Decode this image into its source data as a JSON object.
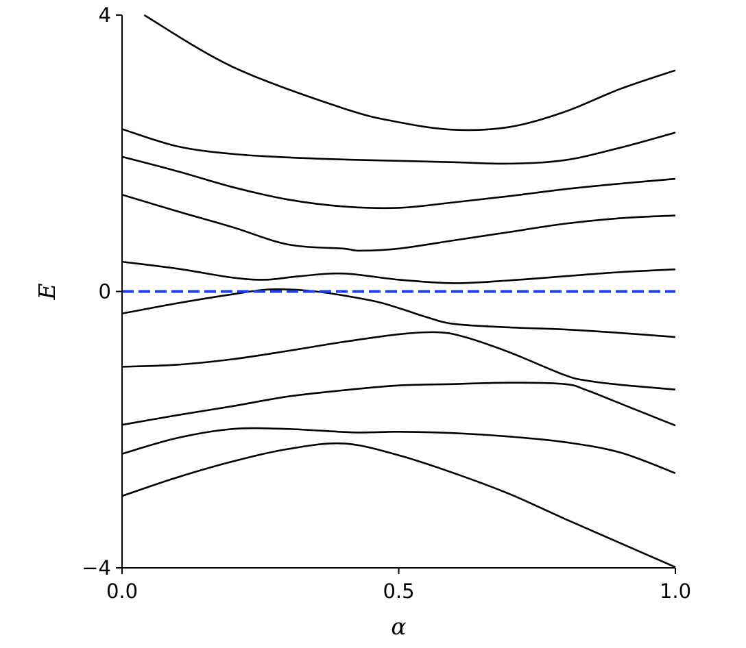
{
  "chart_data": {
    "type": "line",
    "title": "",
    "xlabel": "α",
    "ylabel": "E",
    "xlim": [
      0.0,
      1.0
    ],
    "ylim": [
      -4,
      4
    ],
    "xticks": [
      {
        "value": 0.0,
        "label": "0.0"
      },
      {
        "value": 0.5,
        "label": "0.5"
      },
      {
        "value": 1.0,
        "label": "1.0"
      }
    ],
    "yticks": [
      {
        "value": 4,
        "label": "4"
      },
      {
        "value": 0,
        "label": "0"
      },
      {
        "value": -4,
        "label": "−4"
      }
    ],
    "grid": false,
    "spines": [
      "left",
      "bottom"
    ],
    "line_color": "#000000",
    "reference_line": {
      "y": 0,
      "color": "#1f3fe6",
      "style": "dashed"
    },
    "series": [
      {
        "x": [
          0.04,
          0.2,
          0.4,
          0.5,
          0.6,
          0.7,
          0.8,
          0.9,
          1.0
        ],
        "y": [
          4.0,
          3.25,
          2.65,
          2.45,
          2.34,
          2.38,
          2.6,
          2.93,
          3.2
        ]
      },
      {
        "x": [
          0.0,
          0.1,
          0.2,
          0.3,
          0.4,
          0.5,
          0.6,
          0.7,
          0.8,
          0.9,
          1.0
        ],
        "y": [
          2.35,
          2.1,
          1.99,
          1.94,
          1.91,
          1.89,
          1.87,
          1.85,
          1.9,
          2.08,
          2.3
        ]
      },
      {
        "x": [
          0.0,
          0.1,
          0.2,
          0.3,
          0.4,
          0.5,
          0.6,
          0.7,
          0.8,
          0.9,
          1.0
        ],
        "y": [
          1.95,
          1.74,
          1.51,
          1.33,
          1.23,
          1.21,
          1.29,
          1.38,
          1.48,
          1.56,
          1.63
        ]
      },
      {
        "x": [
          0.0,
          0.1,
          0.2,
          0.3,
          0.4,
          0.43,
          0.5,
          0.6,
          0.7,
          0.8,
          0.9,
          1.0
        ],
        "y": [
          1.4,
          1.16,
          0.93,
          0.68,
          0.62,
          0.59,
          0.62,
          0.74,
          0.86,
          0.98,
          1.06,
          1.1
        ]
      },
      {
        "x": [
          0.0,
          0.1,
          0.2,
          0.26,
          0.32,
          0.4,
          0.5,
          0.6,
          0.7,
          0.8,
          0.9,
          1.0
        ],
        "y": [
          0.43,
          0.33,
          0.2,
          0.17,
          0.22,
          0.26,
          0.17,
          0.12,
          0.16,
          0.22,
          0.28,
          0.32
        ]
      },
      {
        "x": [
          0.0,
          0.1,
          0.2,
          0.27,
          0.35,
          0.45,
          0.5,
          0.55,
          0.6,
          0.7,
          0.8,
          0.9,
          1.0
        ],
        "y": [
          -0.32,
          -0.17,
          -0.04,
          0.03,
          0.0,
          -0.13,
          -0.24,
          -0.37,
          -0.47,
          -0.52,
          -0.55,
          -0.6,
          -0.66
        ]
      },
      {
        "x": [
          0.0,
          0.1,
          0.2,
          0.3,
          0.4,
          0.5,
          0.57,
          0.62,
          0.7,
          0.8,
          0.84,
          0.9,
          1.0
        ],
        "y": [
          -1.09,
          -1.06,
          -0.98,
          -0.86,
          -0.73,
          -0.62,
          -0.59,
          -0.66,
          -0.88,
          -1.21,
          -1.29,
          -1.35,
          -1.42
        ]
      },
      {
        "x": [
          0.0,
          0.1,
          0.2,
          0.3,
          0.4,
          0.5,
          0.6,
          0.7,
          0.8,
          0.84,
          0.9,
          1.0
        ],
        "y": [
          -1.93,
          -1.79,
          -1.66,
          -1.52,
          -1.43,
          -1.36,
          -1.34,
          -1.32,
          -1.34,
          -1.43,
          -1.62,
          -1.94
        ]
      },
      {
        "x": [
          0.0,
          0.1,
          0.2,
          0.3,
          0.42,
          0.5,
          0.6,
          0.7,
          0.8,
          0.9,
          1.0
        ],
        "y": [
          -2.35,
          -2.12,
          -1.99,
          -1.99,
          -2.04,
          -2.03,
          -2.05,
          -2.1,
          -2.18,
          -2.33,
          -2.63
        ]
      },
      {
        "x": [
          0.0,
          0.1,
          0.2,
          0.3,
          0.4,
          0.5,
          0.6,
          0.7,
          0.8,
          0.9,
          1.0
        ],
        "y": [
          -2.96,
          -2.69,
          -2.46,
          -2.28,
          -2.2,
          -2.37,
          -2.63,
          -2.93,
          -3.29,
          -3.64,
          -3.99
        ]
      }
    ]
  }
}
